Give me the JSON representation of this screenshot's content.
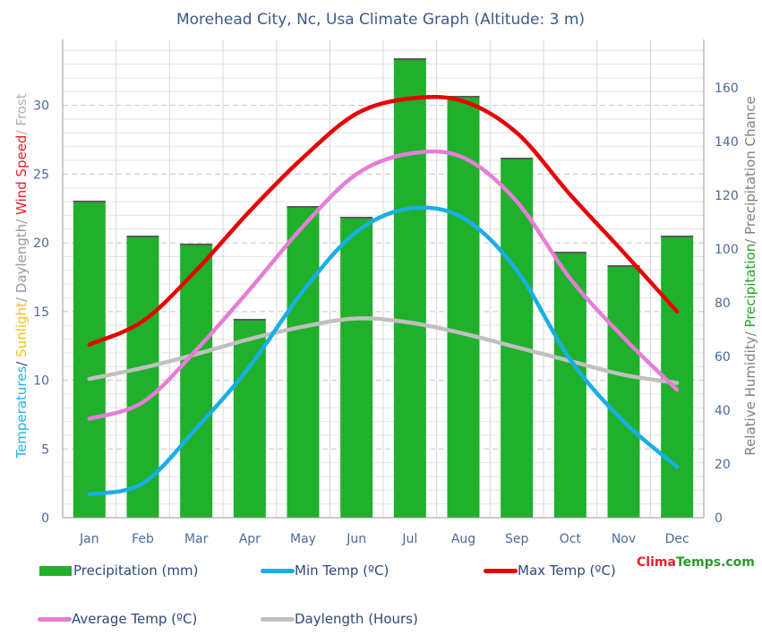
{
  "chart_data": {
    "type": "bar+line",
    "title": "Morehead City, Nc, Usa Climate Graph (Altitude: 3 m)",
    "categories": [
      "Jan",
      "Feb",
      "Mar",
      "Apr",
      "May",
      "Jun",
      "Jul",
      "Aug",
      "Sep",
      "Oct",
      "Nov",
      "Dec"
    ],
    "y_left": {
      "ylim": [
        0,
        34.8
      ],
      "ticks": [
        0,
        5,
        10,
        15,
        20,
        25,
        30
      ],
      "label_parts": [
        {
          "text": "Temperatures",
          "color": "#2ab0e6"
        },
        {
          "text": "/ ",
          "color": "#2c4a7a"
        },
        {
          "text": "Sunlight",
          "color": "#f0c020"
        },
        {
          "text": "/ Daylength/ ",
          "color": "#9a9a9a"
        },
        {
          "text": "Wind Speed",
          "color": "#e8202a"
        },
        {
          "text": "/ Frost",
          "color": "#b0b0b0"
        }
      ]
    },
    "y_right": {
      "ylim": [
        0,
        178
      ],
      "ticks": [
        0,
        20,
        40,
        60,
        80,
        100,
        120,
        140,
        160
      ],
      "label_parts": [
        {
          "text": "Relative Humidity/ ",
          "color": "#808080"
        },
        {
          "text": "Precipitation",
          "color": "#2aa02a"
        },
        {
          "text": "/ Precipitation Chance",
          "color": "#808080"
        }
      ]
    },
    "series": [
      {
        "name": "Precipitation (mm)",
        "kind": "bar",
        "axis": "right",
        "color": "#20b02c",
        "values": [
          118,
          105,
          102,
          74,
          116,
          112,
          171,
          157,
          134,
          99,
          94,
          105
        ]
      },
      {
        "name": "Min Temp (ºC)",
        "kind": "line",
        "axis": "left",
        "color": "#18aee6",
        "values": [
          1.7,
          2.5,
          6.5,
          11.0,
          16.5,
          20.8,
          22.5,
          21.8,
          18.0,
          11.5,
          7.0,
          3.7
        ]
      },
      {
        "name": "Max Temp (ºC)",
        "kind": "line",
        "axis": "left",
        "color": "#e80000",
        "values": [
          12.6,
          14.3,
          18.0,
          22.3,
          26.2,
          29.4,
          30.5,
          30.3,
          28.0,
          23.5,
          19.3,
          15.0
        ]
      },
      {
        "name": "Average Temp (ºC)",
        "kind": "line",
        "axis": "left",
        "color": "#e67ed8",
        "values": [
          7.2,
          8.4,
          12.2,
          16.6,
          21.2,
          25.0,
          26.5,
          26.2,
          23.0,
          17.4,
          13.1,
          9.3
        ]
      },
      {
        "name": "Daylength (Hours)",
        "kind": "line",
        "axis": "left",
        "color": "#c0c0c0",
        "values": [
          10.1,
          10.9,
          11.9,
          13.0,
          13.9,
          14.5,
          14.2,
          13.4,
          12.4,
          11.4,
          10.4,
          9.8
        ]
      }
    ],
    "legend_position": "bottom",
    "grid": true
  },
  "brand": {
    "name": "Clima",
    "suffix": "Temps.com"
  }
}
